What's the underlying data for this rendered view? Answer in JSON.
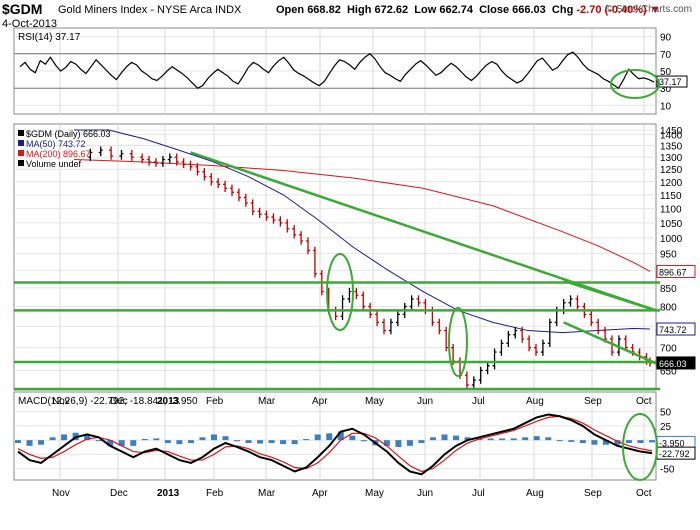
{
  "header": {
    "symbol": "$GDM",
    "name": "Gold Miners Index - NYSE Arca INDX",
    "date": "4-Oct-2013",
    "open_label": "Open",
    "open": "668.82",
    "high_label": "High",
    "high": "672.62",
    "low_label": "Low",
    "low": "662.74",
    "close_label": "Close",
    "close": "666.03",
    "chg_label": "Chg",
    "chg": "-2.70 (-0.40%)",
    "brand": "© StockCharts.com"
  },
  "colors": {
    "price_up": "#000000",
    "price_down": "#c00000",
    "ma50": "#1c1c8c",
    "ma200": "#d81818",
    "trendline": "#3aaa35",
    "macd": "#000000",
    "signal": "#d81818",
    "histogram": "#3a7fc0",
    "rsi": "#000000"
  },
  "chart_data": [
    {
      "type": "line",
      "title": "RSI(14) 37.17",
      "legend": "RSI(14) 37.17",
      "ylim": [
        0,
        100
      ],
      "tick_labels": [
        "90",
        "70",
        "50",
        "30",
        "10"
      ],
      "overbought": 70,
      "oversold": 30,
      "last_value": 37.17,
      "series": [
        {
          "name": "RSI(14)",
          "values": [
            55,
            60,
            52,
            48,
            62,
            58,
            66,
            57,
            50,
            54,
            61,
            58,
            52,
            47,
            55,
            63,
            57,
            51,
            45,
            40,
            48,
            55,
            60,
            57,
            50,
            46,
            41,
            39,
            44,
            50,
            55,
            51,
            47,
            42,
            36,
            30,
            33,
            41,
            47,
            52,
            48,
            44,
            38,
            35,
            44,
            54,
            60,
            57,
            52,
            48,
            56,
            62,
            66,
            59,
            51,
            47,
            44,
            40,
            36,
            33,
            38,
            47,
            56,
            63,
            61,
            57,
            52,
            60,
            66,
            70,
            64,
            55,
            48,
            45,
            41,
            38,
            46,
            52,
            58,
            62,
            57,
            51,
            45,
            48,
            54,
            59,
            55,
            49,
            43,
            39,
            44,
            51,
            57,
            61,
            58,
            50,
            44,
            40,
            36,
            39,
            46,
            54,
            62,
            65,
            58,
            51,
            54,
            62,
            69,
            72,
            66,
            58,
            52,
            49,
            46,
            41,
            38,
            34,
            30,
            40,
            52,
            46,
            41,
            42,
            40,
            37.17
          ]
        }
      ]
    },
    {
      "type": "line",
      "title": "$GDM (Daily) 666.03",
      "legend": [
        "$GDM (Daily) 666.03",
        "MA(50) 743.72",
        "MA(200) 896.67",
        "Volume undef"
      ],
      "x_labels": [
        "Nov",
        "Dec",
        "2013",
        "Feb",
        "Mar",
        "Apr",
        "May",
        "Jun",
        "Jul",
        "Aug",
        "Sep",
        "Oct"
      ],
      "ylim": [
        610,
        1420
      ],
      "y_ticks": [
        "1450",
        "1400",
        "1350",
        "1300",
        "1250",
        "1200",
        "1150",
        "1100",
        "1050",
        "1000",
        "950",
        "900",
        "850",
        "800",
        "750",
        "700",
        "650"
      ],
      "y_scale": "log",
      "axis_markers": [
        "896.67",
        "743.72",
        "666.03"
      ],
      "series": [
        {
          "name": "$GDM (Daily)",
          "values": [
            [
              0,
              1300
            ],
            [
              3,
              1320
            ],
            [
              6,
              1330
            ],
            [
              9,
              1305
            ],
            [
              12,
              1315
            ],
            [
              15,
              1300
            ],
            [
              18,
              1290
            ],
            [
              20,
              1280
            ],
            [
              22,
              1275
            ],
            [
              24,
              1290
            ],
            [
              26,
              1300
            ],
            [
              28,
              1280
            ],
            [
              30,
              1270
            ],
            [
              32,
              1260
            ],
            [
              34,
              1240
            ],
            [
              36,
              1220
            ],
            [
              38,
              1200
            ],
            [
              40,
              1190
            ],
            [
              42,
              1175
            ],
            [
              44,
              1160
            ],
            [
              46,
              1140
            ],
            [
              48,
              1120
            ],
            [
              50,
              1090
            ],
            [
              52,
              1080
            ],
            [
              54,
              1070
            ],
            [
              56,
              1060
            ],
            [
              58,
              1050
            ],
            [
              60,
              1030
            ],
            [
              62,
              1010
            ],
            [
              64,
              990
            ],
            [
              66,
              960
            ],
            [
              68,
              890
            ],
            [
              70,
              840
            ],
            [
              72,
              790
            ],
            [
              74,
              775
            ],
            [
              76,
              820
            ],
            [
              78,
              840
            ],
            [
              80,
              830
            ],
            [
              82,
              800
            ],
            [
              84,
              780
            ],
            [
              86,
              760
            ],
            [
              88,
              740
            ],
            [
              90,
              760
            ],
            [
              92,
              780
            ],
            [
              94,
              800
            ],
            [
              96,
              820
            ],
            [
              98,
              810
            ],
            [
              100,
              790
            ],
            [
              102,
              760
            ],
            [
              104,
              740
            ],
            [
              106,
              700
            ],
            [
              108,
              670
            ],
            [
              110,
              640
            ],
            [
              112,
              620
            ],
            [
              114,
              630
            ],
            [
              116,
              650
            ],
            [
              118,
              660
            ],
            [
              120,
              690
            ],
            [
              122,
              710
            ],
            [
              124,
              730
            ],
            [
              126,
              740
            ],
            [
              128,
              720
            ],
            [
              130,
              700
            ],
            [
              132,
              690
            ],
            [
              134,
              710
            ],
            [
              136,
              760
            ],
            [
              138,
              790
            ],
            [
              140,
              810
            ],
            [
              142,
              820
            ],
            [
              144,
              800
            ],
            [
              146,
              780
            ],
            [
              148,
              760
            ],
            [
              150,
              740
            ],
            [
              152,
              720
            ],
            [
              154,
              690
            ],
            [
              156,
              720
            ],
            [
              158,
              700
            ],
            [
              160,
              690
            ],
            [
              162,
              680
            ],
            [
              164,
              670
            ],
            [
              165,
              666.03
            ]
          ]
        },
        {
          "name": "MA(50)",
          "values": [
            [
              0,
              1450
            ],
            [
              10,
              1420
            ],
            [
              20,
              1380
            ],
            [
              30,
              1330
            ],
            [
              40,
              1280
            ],
            [
              50,
              1220
            ],
            [
              60,
              1150
            ],
            [
              70,
              1060
            ],
            [
              80,
              970
            ],
            [
              90,
              900
            ],
            [
              100,
              840
            ],
            [
              110,
              790
            ],
            [
              120,
              760
            ],
            [
              130,
              740
            ],
            [
              140,
              735
            ],
            [
              150,
              740
            ],
            [
              160,
              745
            ],
            [
              165,
              743.72
            ]
          ]
        },
        {
          "name": "MA(200)",
          "values": [
            [
              0,
              1290
            ],
            [
              20,
              1280
            ],
            [
              40,
              1265
            ],
            [
              60,
              1245
            ],
            [
              80,
              1215
            ],
            [
              100,
              1175
            ],
            [
              120,
              1110
            ],
            [
              140,
              1020
            ],
            [
              150,
              975
            ],
            [
              160,
              925
            ],
            [
              165,
              896.67
            ]
          ]
        }
      ],
      "trendlines": [
        {
          "type": "descending resistance",
          "from": [
            32,
            1320
          ],
          "to": [
            165,
            790
          ]
        },
        {
          "type": "channel upper",
          "from": [
            140,
            870
          ],
          "to": [
            165,
            790
          ]
        },
        {
          "type": "channel lower",
          "from": [
            140,
            760
          ],
          "to": [
            165,
            665
          ]
        }
      ],
      "horizontal_lines": [
        865,
        790,
        668,
        612
      ],
      "highlighted_regions": [
        "Apr drop",
        "Jun drop",
        "Sep-Oct wedge"
      ]
    },
    {
      "type": "line",
      "title": "MACD(12,26,9) -22.792, -18.841, -3.950",
      "legend": "MACD(12,26,9) -22.792, -18.841, -3.950",
      "x_labels": [
        "Nov",
        "Dec",
        "2013",
        "Feb",
        "Mar",
        "Apr",
        "May",
        "Jun",
        "Jul",
        "Aug",
        "Sep",
        "Oct"
      ],
      "ylim": [
        -70,
        60
      ],
      "y_ticks": [
        "50",
        "25",
        "0",
        "-25",
        "-50"
      ],
      "axis_markers": [
        "-3.950",
        "-22.792"
      ],
      "series": [
        {
          "name": "MACD",
          "values": [
            -20,
            -35,
            -40,
            -25,
            -10,
            5,
            10,
            5,
            -10,
            -20,
            -30,
            -20,
            -15,
            -25,
            -35,
            -40,
            -30,
            -15,
            -5,
            -12,
            -20,
            -30,
            -35,
            -45,
            -55,
            -48,
            -30,
            -10,
            15,
            20,
            10,
            -5,
            -20,
            -40,
            -55,
            -60,
            -45,
            -25,
            -10,
            0,
            5,
            10,
            15,
            20,
            30,
            40,
            45,
            42,
            35,
            25,
            10,
            0,
            -10,
            -15,
            -20,
            -22.792
          ]
        },
        {
          "name": "Signal",
          "values": [
            -15,
            -25,
            -32,
            -30,
            -20,
            -8,
            2,
            5,
            0,
            -10,
            -20,
            -22,
            -18,
            -20,
            -28,
            -35,
            -35,
            -25,
            -12,
            -10,
            -15,
            -24,
            -30,
            -38,
            -48,
            -50,
            -40,
            -22,
            0,
            12,
            12,
            4,
            -10,
            -28,
            -45,
            -55,
            -50,
            -35,
            -18,
            -5,
            2,
            7,
            12,
            17,
            25,
            33,
            40,
            42,
            38,
            30,
            18,
            8,
            -2,
            -10,
            -15,
            -18.841
          ]
        },
        {
          "name": "Histogram",
          "values": [
            -5,
            -10,
            -8,
            5,
            10,
            13,
            8,
            0,
            -10,
            -10,
            -10,
            2,
            3,
            -5,
            -7,
            -5,
            5,
            10,
            7,
            -2,
            -5,
            -6,
            -5,
            -7,
            -7,
            2,
            10,
            12,
            15,
            8,
            -2,
            -9,
            -10,
            -12,
            -10,
            -5,
            5,
            10,
            8,
            5,
            3,
            3,
            3,
            3,
            5,
            7,
            5,
            0,
            -3,
            -5,
            -8,
            -8,
            -8,
            -5,
            -5,
            -3.95
          ]
        }
      ]
    }
  ]
}
